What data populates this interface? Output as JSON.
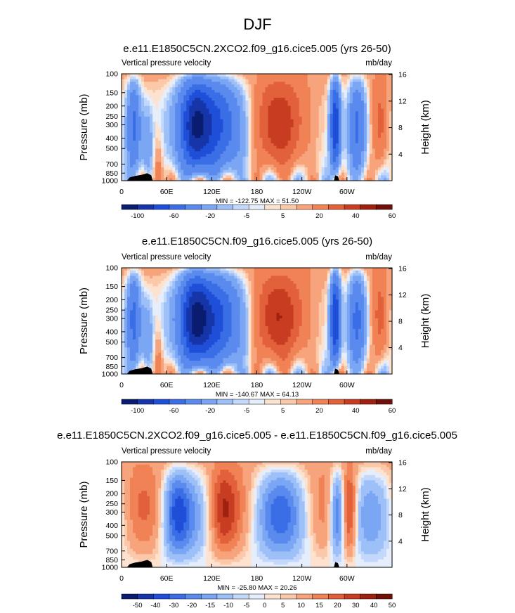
{
  "page_title": "DJF",
  "palettes": {
    "main": [
      "#0a1c70",
      "#1535a8",
      "#1f4fd8",
      "#3a6ee6",
      "#5a8aee",
      "#7aa6f4",
      "#9ec0f8",
      "#c3d8fb",
      "#e6eefc",
      "#fde2cf",
      "#fbc9a9",
      "#f7a47c",
      "#f08256",
      "#e2603a",
      "#c83d22",
      "#a0200f",
      "#701008"
    ],
    "diff": [
      "#0a1c70",
      "#1535a8",
      "#1f4fd8",
      "#3a6ee6",
      "#5a8aee",
      "#7aa6f4",
      "#9ec0f8",
      "#c3d8fb",
      "#e6eefc",
      "#fde2cf",
      "#fbc9a9",
      "#f7a47c",
      "#f08256",
      "#e2603a",
      "#c83d22",
      "#a0200f",
      "#701008"
    ]
  },
  "chart_data": [
    {
      "type": "heatmap",
      "title": "e.e11.E1850C5CN.2XCO2.f09_g16.cice5.005 (yrs 26-50)",
      "left_label": "Vertical pressure velocity",
      "right_label": "mb/day",
      "ylabel": "Pressure (mb)",
      "ylabel_right": "Height (km)",
      "x_ticks": [
        "0",
        "60E",
        "120E",
        "180",
        "120W",
        "60W"
      ],
      "y_ticks": [
        "100",
        "150",
        "200",
        "250",
        "300",
        "400",
        "500",
        "700",
        "850",
        "1000"
      ],
      "y_ticks_right": [
        "16",
        "12",
        "8",
        "4"
      ],
      "stats": "MIN = -122.75  MAX =  51.50",
      "colorbar_labels": [
        "-100",
        "-60",
        "-20",
        "-5",
        "5",
        "20",
        "40",
        "60"
      ],
      "palette": "main",
      "field_scale": 1.0
    },
    {
      "type": "heatmap",
      "title": "e.e11.E1850C5CN.f09_g16.cice5.005 (yrs 26-50)",
      "left_label": "Vertical pressure velocity",
      "right_label": "mb/day",
      "ylabel": "Pressure (mb)",
      "ylabel_right": "Height (km)",
      "x_ticks": [
        "0",
        "60E",
        "120E",
        "180",
        "120W",
        "60W"
      ],
      "y_ticks": [
        "100",
        "150",
        "200",
        "250",
        "300",
        "400",
        "500",
        "700",
        "850",
        "1000"
      ],
      "y_ticks_right": [
        "16",
        "12",
        "8",
        "4"
      ],
      "stats": "MIN = -140.67  MAX =  64.13",
      "colorbar_labels": [
        "-100",
        "-60",
        "-20",
        "-5",
        "5",
        "20",
        "40",
        "60"
      ],
      "palette": "main",
      "field_scale": 1.05
    },
    {
      "type": "heatmap",
      "title": "e.e11.E1850C5CN.2XCO2.f09_g16.cice5.005 - e.e11.E1850C5CN.f09_g16.cice5.005",
      "left_label": "Vertical pressure velocity",
      "right_label": "mb/day",
      "ylabel": "Pressure (mb)",
      "ylabel_right": "Height (km)",
      "x_ticks": [
        "0",
        "60E",
        "120E",
        "180",
        "120W",
        "60W"
      ],
      "y_ticks": [
        "100",
        "150",
        "200",
        "250",
        "300",
        "400",
        "500",
        "700",
        "850",
        "1000"
      ],
      "y_ticks_right": [
        "16",
        "12",
        "8",
        "4"
      ],
      "stats": "MIN = -25.80  MAX =  20.26",
      "colorbar_labels": [
        "-50",
        "-40",
        "-30",
        "-20",
        "-15",
        "-10",
        "-5",
        "0",
        "5",
        "10",
        "15",
        "20",
        "30",
        "40",
        "50"
      ],
      "palette": "diff",
      "field_scale": 1.0
    }
  ]
}
